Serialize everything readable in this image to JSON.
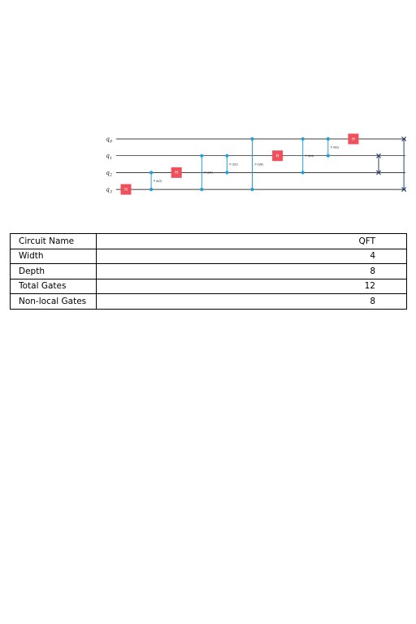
{
  "circuit": {
    "qubits": [
      "q0",
      "q1",
      "q2",
      "q3"
    ],
    "gate_color": "#f0505b",
    "control_color": "#1f9fe0",
    "swap_color": "#24466e",
    "steps": [
      {
        "type": "H",
        "target": 3
      },
      {
        "type": "CP",
        "control": 3,
        "target": 2,
        "label": "P (π/2)"
      },
      {
        "type": "H",
        "target": 2
      },
      {
        "type": "CP",
        "control": 3,
        "target": 1,
        "label": "P (π/4)"
      },
      {
        "type": "CP",
        "control": 2,
        "target": 1,
        "label": "P (π/2)"
      },
      {
        "type": "CP",
        "control": 3,
        "target": 0,
        "label": "P (π/8)"
      },
      {
        "type": "H",
        "target": 1
      },
      {
        "type": "CP",
        "control": 2,
        "target": 0,
        "label": "P (π/4)"
      },
      {
        "type": "CP",
        "control": 1,
        "target": 0,
        "label": "P (π/2)"
      },
      {
        "type": "H",
        "target": 0
      },
      {
        "type": "SWAP",
        "a": 1,
        "b": 2
      },
      {
        "type": "SWAP",
        "a": 0,
        "b": 3
      }
    ]
  },
  "table": {
    "rows": [
      {
        "label": "Circuit Name",
        "value": "QFT"
      },
      {
        "label": "Width",
        "value": "4"
      },
      {
        "label": "Depth",
        "value": "8"
      },
      {
        "label": "Total Gates",
        "value": "12"
      },
      {
        "label": "Non-local Gates",
        "value": "8"
      }
    ]
  }
}
